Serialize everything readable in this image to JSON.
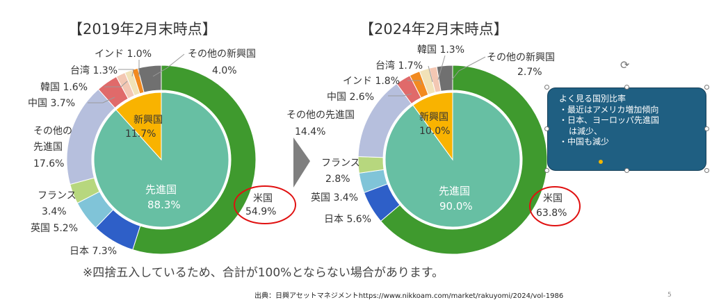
{
  "chart_data": [
    {
      "type": "pie",
      "title": "【2019年2月末時点】",
      "inner": [
        {
          "label": "先進国",
          "value": 88.3,
          "display": "88.3%",
          "color": "#67bfa3"
        },
        {
          "label": "新興国",
          "value": 11.7,
          "display": "11.7%",
          "color": "#f9b300"
        }
      ],
      "outer": [
        {
          "label": "米国",
          "value": 54.9,
          "display": "54.9%",
          "color": "#3f9a2e"
        },
        {
          "label": "日本",
          "value": 7.3,
          "display": "7.3%",
          "color": "#2e5fc8"
        },
        {
          "label": "英国",
          "value": 5.2,
          "display": "5.2%",
          "color": "#80c4d8"
        },
        {
          "label": "フランス",
          "value": 3.4,
          "display": "3.4%",
          "color": "#b7d77e"
        },
        {
          "label": "その他の先進国",
          "value": 17.6,
          "display": "17.6%",
          "color": "#b6bfdd"
        },
        {
          "label": "中国",
          "value": 3.7,
          "display": "3.7%",
          "color": "#e06a6a"
        },
        {
          "label": "韓国",
          "value": 1.6,
          "display": "1.6%",
          "color": "#f3c7b3"
        },
        {
          "label": "台湾",
          "value": 1.3,
          "display": "1.3%",
          "color": "#f1e2b8"
        },
        {
          "label": "インド",
          "value": 1.0,
          "display": "1.0%",
          "color": "#f28a20"
        },
        {
          "label": "その他の新興国",
          "value": 4.0,
          "display": "4.0%",
          "color": "#707070"
        }
      ]
    },
    {
      "type": "pie",
      "title": "【2024年2月末時点】",
      "inner": [
        {
          "label": "先進国",
          "value": 90.0,
          "display": "90.0%",
          "color": "#67bfa3"
        },
        {
          "label": "新興国",
          "value": 10.0,
          "display": "10.0%",
          "color": "#f9b300"
        }
      ],
      "outer": [
        {
          "label": "米国",
          "value": 63.8,
          "display": "63.8%",
          "color": "#3f9a2e"
        },
        {
          "label": "日本",
          "value": 5.6,
          "display": "5.6%",
          "color": "#2e5fc8"
        },
        {
          "label": "英国",
          "value": 3.4,
          "display": "3.4%",
          "color": "#80c4d8"
        },
        {
          "label": "フランス",
          "value": 2.8,
          "display": "2.8%",
          "color": "#b7d77e"
        },
        {
          "label": "その他の先進国",
          "value": 14.4,
          "display": "14.4%",
          "color": "#b6bfdd"
        },
        {
          "label": "中国",
          "value": 2.6,
          "display": "2.6%",
          "color": "#e06a6a"
        },
        {
          "label": "インド",
          "value": 1.8,
          "display": "1.8%",
          "color": "#f28a20"
        },
        {
          "label": "台湾",
          "value": 1.7,
          "display": "1.7%",
          "color": "#f1e2b8"
        },
        {
          "label": "韓国",
          "value": 1.3,
          "display": "1.3%",
          "color": "#f3c7b3"
        },
        {
          "label": "その他の新興国",
          "value": 2.7,
          "display": "2.7%",
          "color": "#707070"
        }
      ]
    }
  ],
  "footnote": "※四捨五入しているため、合計が100%とならない場合があります。",
  "source": "出典：日興アセットマネジメントhttps://www.nikkoam.com/market/rakuyomi/2024/vol-1986",
  "page_number": "5",
  "callout": {
    "title": "よく見る国別比率",
    "items": [
      "・最近はアメリカ増加傾向",
      "・日本、ヨーロッパ先進国",
      "は減少、",
      "・中国も減少"
    ]
  },
  "colors": {
    "highlight_circle": "#e01010",
    "arrow": "#7f7f7f",
    "callout_bg": "#1f5f82"
  }
}
